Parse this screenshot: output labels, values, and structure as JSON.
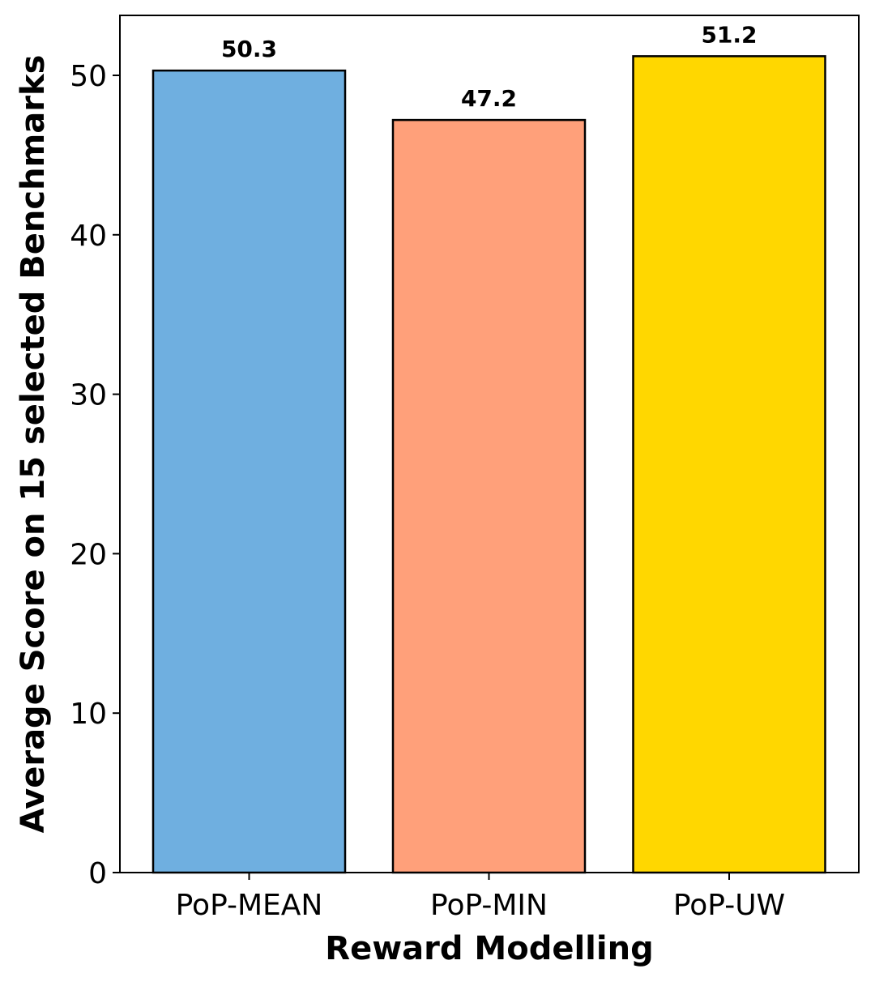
{
  "chart_data": {
    "type": "bar",
    "title": "",
    "xlabel": "Reward Modelling",
    "ylabel": "Average Score on 15 selected Benchmarks",
    "categories": [
      "PoP-MEAN",
      "PoP-MIN",
      "PoP-UW"
    ],
    "values": [
      50.3,
      47.2,
      51.2
    ],
    "data_labels": [
      "50.3",
      "47.2",
      "51.2"
    ],
    "colors": [
      "#6fafe0",
      "#ffa07a",
      "#ffd700"
    ],
    "edge_color": "#000000",
    "ylim": [
      0,
      53.76
    ],
    "yticks": [
      0,
      10,
      20,
      30,
      40,
      50
    ],
    "ytick_labels": [
      "0",
      "10",
      "20",
      "30",
      "40",
      "50"
    ],
    "grid": false,
    "legend": false
  }
}
